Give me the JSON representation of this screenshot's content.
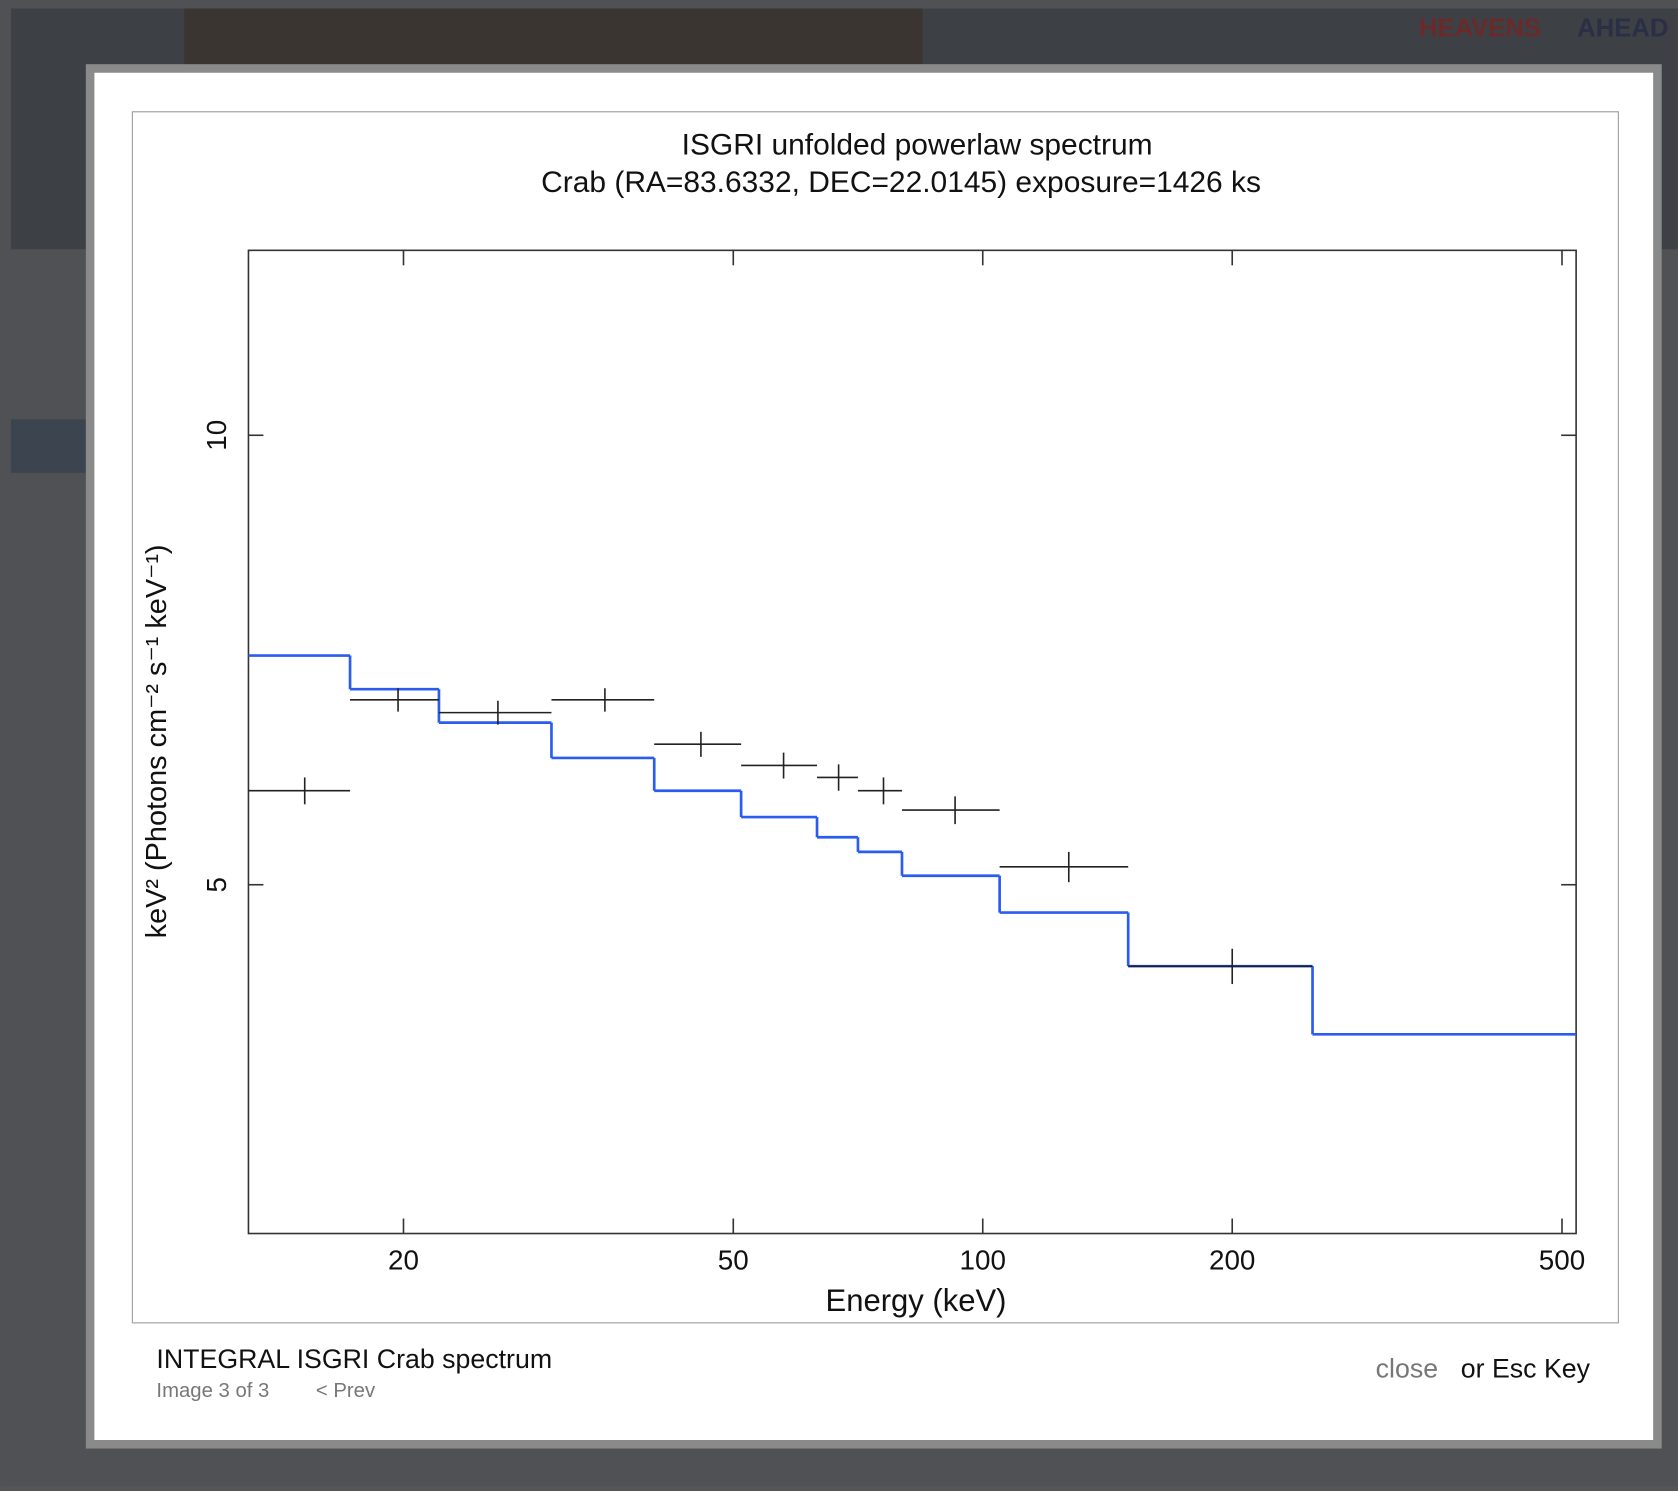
{
  "background": {
    "logo": [
      "HEAVENS",
      "AHEAD"
    ]
  },
  "caption": {
    "title": "INTEGRAL ISGRI Crab spectrum",
    "counter": "Image 3 of 3",
    "prev": "< Prev",
    "close": "close",
    "hint": "or Esc Key"
  },
  "chart_data": {
    "type": "step",
    "title": "ISGRI unfolded powerlaw spectrum",
    "subtitle": "Crab (RA=83.6332, DEC=22.0145) exposure=1426 ks",
    "xlabel": "Energy (keV)",
    "ylabel": "keV² (Photons cm⁻² s⁻¹ keV⁻¹)",
    "xscale": "log",
    "yscale": "log",
    "xlim": [
      13,
      520
    ],
    "ylim": [
      2.92,
      13.3
    ],
    "xticks": [
      20,
      50,
      100,
      200,
      500
    ],
    "yticks": [
      5,
      10
    ],
    "bins": [
      13,
      17.24,
      22.07,
      30.17,
      40.14,
      51.1,
      63.1,
      70.7,
      79.9,
      104.8,
      149.8,
      250,
      520
    ],
    "model": {
      "color": "#2a5cf0",
      "values": [
        7.12,
        6.76,
        6.42,
        6.08,
        5.78,
        5.55,
        5.38,
        5.26,
        5.07,
        4.79,
        4.41,
        3.97
      ]
    },
    "data": {
      "color": "#222222",
      "x": [
        15.2,
        19.7,
        26.0,
        35.0,
        45.7,
        57.5,
        67.0,
        75.9,
        92.6,
        127,
        200
      ],
      "values": [
        5.78,
        6.65,
        6.52,
        6.65,
        6.21,
        6.01,
        5.9,
        5.78,
        5.61,
        5.14,
        4.41
      ],
      "errors": [
        0.12,
        0.12,
        0.12,
        0.12,
        0.12,
        0.12,
        0.12,
        0.12,
        0.12,
        0.12,
        0.12
      ]
    }
  }
}
